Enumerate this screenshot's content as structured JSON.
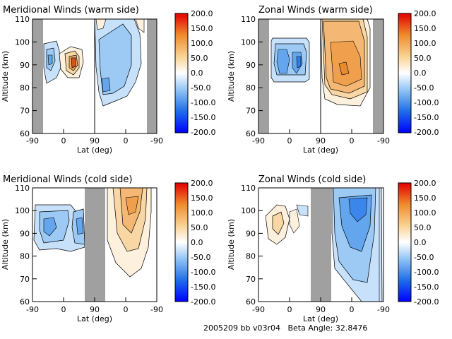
{
  "footer": "2005209 bb v03r04   Beta Angle: 32.8476",
  "colorbar": {
    "ticks": [
      "200.0",
      "150.0",
      "100.0",
      "50.0",
      "0.0",
      "-50.0",
      "-100.0",
      "-150.0",
      "-200.0"
    ],
    "range": [
      -200,
      200
    ],
    "colors": {
      "min": "#0000ff",
      "mid": "#ffffff",
      "max": "#e00000"
    }
  },
  "chart_data": [
    {
      "type": "heatmap",
      "title": "Meridional Winds (warm side)",
      "xlabel": "Lat (deg)",
      "ylabel": "Altitude (km)",
      "x_ticks": [
        "-90",
        "0",
        "90",
        "0",
        "-90"
      ],
      "y_ticks": [
        "110",
        "100",
        "90",
        "80",
        "70",
        "60"
      ],
      "ylim": [
        60,
        110
      ],
      "divider_at": 90,
      "gray_bands": [
        [
          "-90",
          "-80"
        ],
        [
          "-30",
          "-90"
        ]
      ],
      "features": [
        {
          "kind": "negative",
          "lat_range": [
            -45,
            -25
          ],
          "alt_range": [
            82,
            102
          ],
          "peak": -50
        },
        {
          "kind": "positive",
          "lat_range": [
            -10,
            30
          ],
          "alt_range": [
            83,
            96
          ],
          "peak": 150
        },
        {
          "kind": "negative",
          "lat_range": [
            90,
            20
          ],
          "alt_range": [
            72,
            108
          ],
          "peak": -120
        }
      ]
    },
    {
      "type": "heatmap",
      "title": "Zonal Winds (warm side)",
      "xlabel": "Lat (deg)",
      "ylabel": "Altitude (km)",
      "x_ticks": [
        "-90",
        "0",
        "90",
        "0",
        "-90"
      ],
      "y_ticks": [
        "110",
        "100",
        "90",
        "80",
        "70",
        "60"
      ],
      "ylim": [
        60,
        110
      ],
      "divider_at": 90,
      "gray_bands": [
        [
          "-90",
          "-80"
        ],
        [
          "-30",
          "-90"
        ]
      ],
      "features": [
        {
          "kind": "negative",
          "lat_range": [
            -65,
            30
          ],
          "alt_range": [
            82,
            104
          ],
          "peak": -120
        },
        {
          "kind": "positive",
          "lat_range": [
            90,
            -30
          ],
          "alt_range": [
            82,
            110
          ],
          "peak": 100
        }
      ]
    },
    {
      "type": "heatmap",
      "title": "Meridional Winds (cold side)",
      "xlabel": "Lat (deg)",
      "ylabel": "Altitude (km)",
      "x_ticks": [
        "-90",
        "0",
        "90",
        "0",
        "-90"
      ],
      "y_ticks": [
        "110",
        "100",
        "90",
        "80",
        "70",
        "60"
      ],
      "ylim": [
        60,
        110
      ],
      "gray_bands": [
        [
          "50",
          "120"
        ]
      ],
      "features": [
        {
          "kind": "negative",
          "lat_range": [
            -85,
            50
          ],
          "alt_range": [
            83,
            102
          ],
          "peak": -100
        },
        {
          "kind": "positive",
          "lat_range": [
            120,
            -60
          ],
          "alt_range": [
            65,
            110
          ],
          "peak": 100
        }
      ]
    },
    {
      "type": "heatmap",
      "title": "Zonal Winds (cold side)",
      "xlabel": "Lat (deg)",
      "ylabel": "Altitude (km)",
      "x_ticks": [
        "-90",
        "0",
        "90",
        "0",
        "-90"
      ],
      "y_ticks": [
        "110",
        "100",
        "90",
        "80",
        "70",
        "60"
      ],
      "ylim": [
        60,
        110
      ],
      "gray_bands": [
        [
          "50",
          "100"
        ]
      ],
      "features": [
        {
          "kind": "positive",
          "lat_range": [
            -45,
            5
          ],
          "alt_range": [
            85,
            100
          ],
          "peak": 40
        },
        {
          "kind": "negative",
          "lat_range": [
            100,
            -90
          ],
          "alt_range": [
            62,
            110
          ],
          "peak": -120
        }
      ]
    }
  ]
}
